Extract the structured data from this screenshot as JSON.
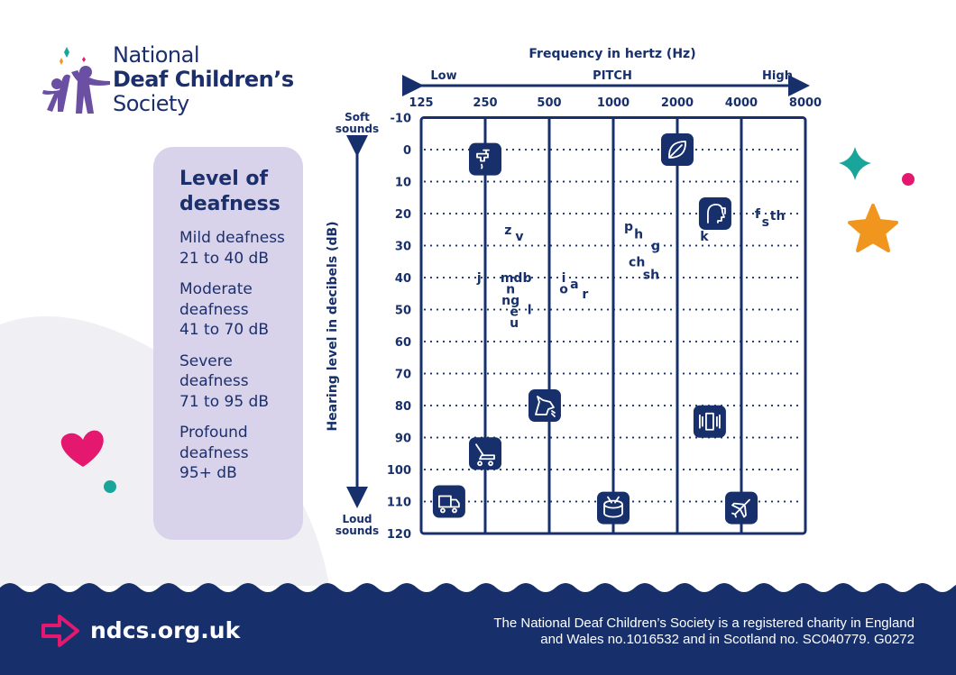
{
  "logo": {
    "line1": "National",
    "line2": "Deaf Children’s",
    "line3": "Society"
  },
  "panel": {
    "title": "Level of deafness",
    "levels": [
      {
        "name": "Mild deafness",
        "range": "21 to 40 dB"
      },
      {
        "name": "Moderate deafness",
        "range": "41 to 70 dB"
      },
      {
        "name": "Severe deafness",
        "range": "71 to 95 dB"
      },
      {
        "name": "Profound deafness",
        "range": "95+ dB"
      }
    ]
  },
  "footer": {
    "url": "ndcs.org.uk",
    "charity_line1": "The National Deaf Children’s Society is a registered charity in England",
    "charity_line2": "and Wales no.1016532 and in Scotland no. SC040779. G0272"
  },
  "colors": {
    "navy": "#17306c",
    "lavender": "#d8d3ea",
    "pink": "#e5186f",
    "teal": "#1aa59a",
    "orange": "#f0961e",
    "purple": "#6a4fa3"
  },
  "chart_data": {
    "type": "scatter",
    "title": "Frequency in hertz (Hz)",
    "pitch_label": "PITCH",
    "pitch_low": "Low",
    "pitch_high": "High",
    "ylabel": "Hearing level in decibels (dB)",
    "y_top_label": "Soft sounds",
    "y_bottom_label": "Loud sounds",
    "x_scale": "log2",
    "x_ticks": [
      125,
      250,
      500,
      1000,
      2000,
      4000,
      8000
    ],
    "y_ticks": [
      -10,
      0,
      10,
      20,
      30,
      40,
      50,
      60,
      70,
      80,
      90,
      100,
      110,
      120
    ],
    "ylim": [
      -10,
      120
    ],
    "y_inverted": true,
    "grid": "dotted horizontal, solid vertical",
    "speech_sounds": [
      {
        "label": "z",
        "freq": 320,
        "db": 25
      },
      {
        "label": "v",
        "freq": 362,
        "db": 27
      },
      {
        "label": "j",
        "freq": 234,
        "db": 40
      },
      {
        "label": "mdb",
        "freq": 349,
        "db": 40
      },
      {
        "label": "n",
        "freq": 329,
        "db": 43
      },
      {
        "label": "ng",
        "freq": 329,
        "db": 47
      },
      {
        "label": "e",
        "freq": 342,
        "db": 50
      },
      {
        "label": "u",
        "freq": 342,
        "db": 53
      },
      {
        "label": "l",
        "freq": 404,
        "db": 50
      },
      {
        "label": "i",
        "freq": 585,
        "db": 40
      },
      {
        "label": "o",
        "freq": 585,
        "db": 43
      },
      {
        "label": "a",
        "freq": 656,
        "db": 42
      },
      {
        "label": "r",
        "freq": 738,
        "db": 45
      },
      {
        "label": "p",
        "freq": 1181,
        "db": 24
      },
      {
        "label": "h",
        "freq": 1291,
        "db": 26
      },
      {
        "label": "g",
        "freq": 1582,
        "db": 30
      },
      {
        "label": "ch",
        "freq": 1291,
        "db": 35
      },
      {
        "label": "sh",
        "freq": 1506,
        "db": 39
      },
      {
        "label": "k",
        "freq": 2678,
        "db": 27
      },
      {
        "label": "f",
        "freq": 4764,
        "db": 20
      },
      {
        "label": "s",
        "freq": 5000,
        "db": 22
      },
      {
        "label": "th",
        "freq": 5690,
        "db": 20
      }
    ],
    "sound_icons": [
      {
        "icon": "dripping-tap-icon",
        "freq": 250,
        "db": 3
      },
      {
        "icon": "leaf-icon",
        "freq": 2000,
        "db": 0
      },
      {
        "icon": "whisper-icon",
        "freq": 3012,
        "db": 20
      },
      {
        "icon": "dog-bark-icon",
        "freq": 476,
        "db": 80
      },
      {
        "icon": "phone-ringing-icon",
        "freq": 2840,
        "db": 85
      },
      {
        "icon": "lawnmower-icon",
        "freq": 250,
        "db": 95
      },
      {
        "icon": "truck-icon",
        "freq": 169,
        "db": 110
      },
      {
        "icon": "drum-icon",
        "freq": 1000,
        "db": 112
      },
      {
        "icon": "airplane-icon",
        "freq": 4000,
        "db": 112
      }
    ]
  }
}
